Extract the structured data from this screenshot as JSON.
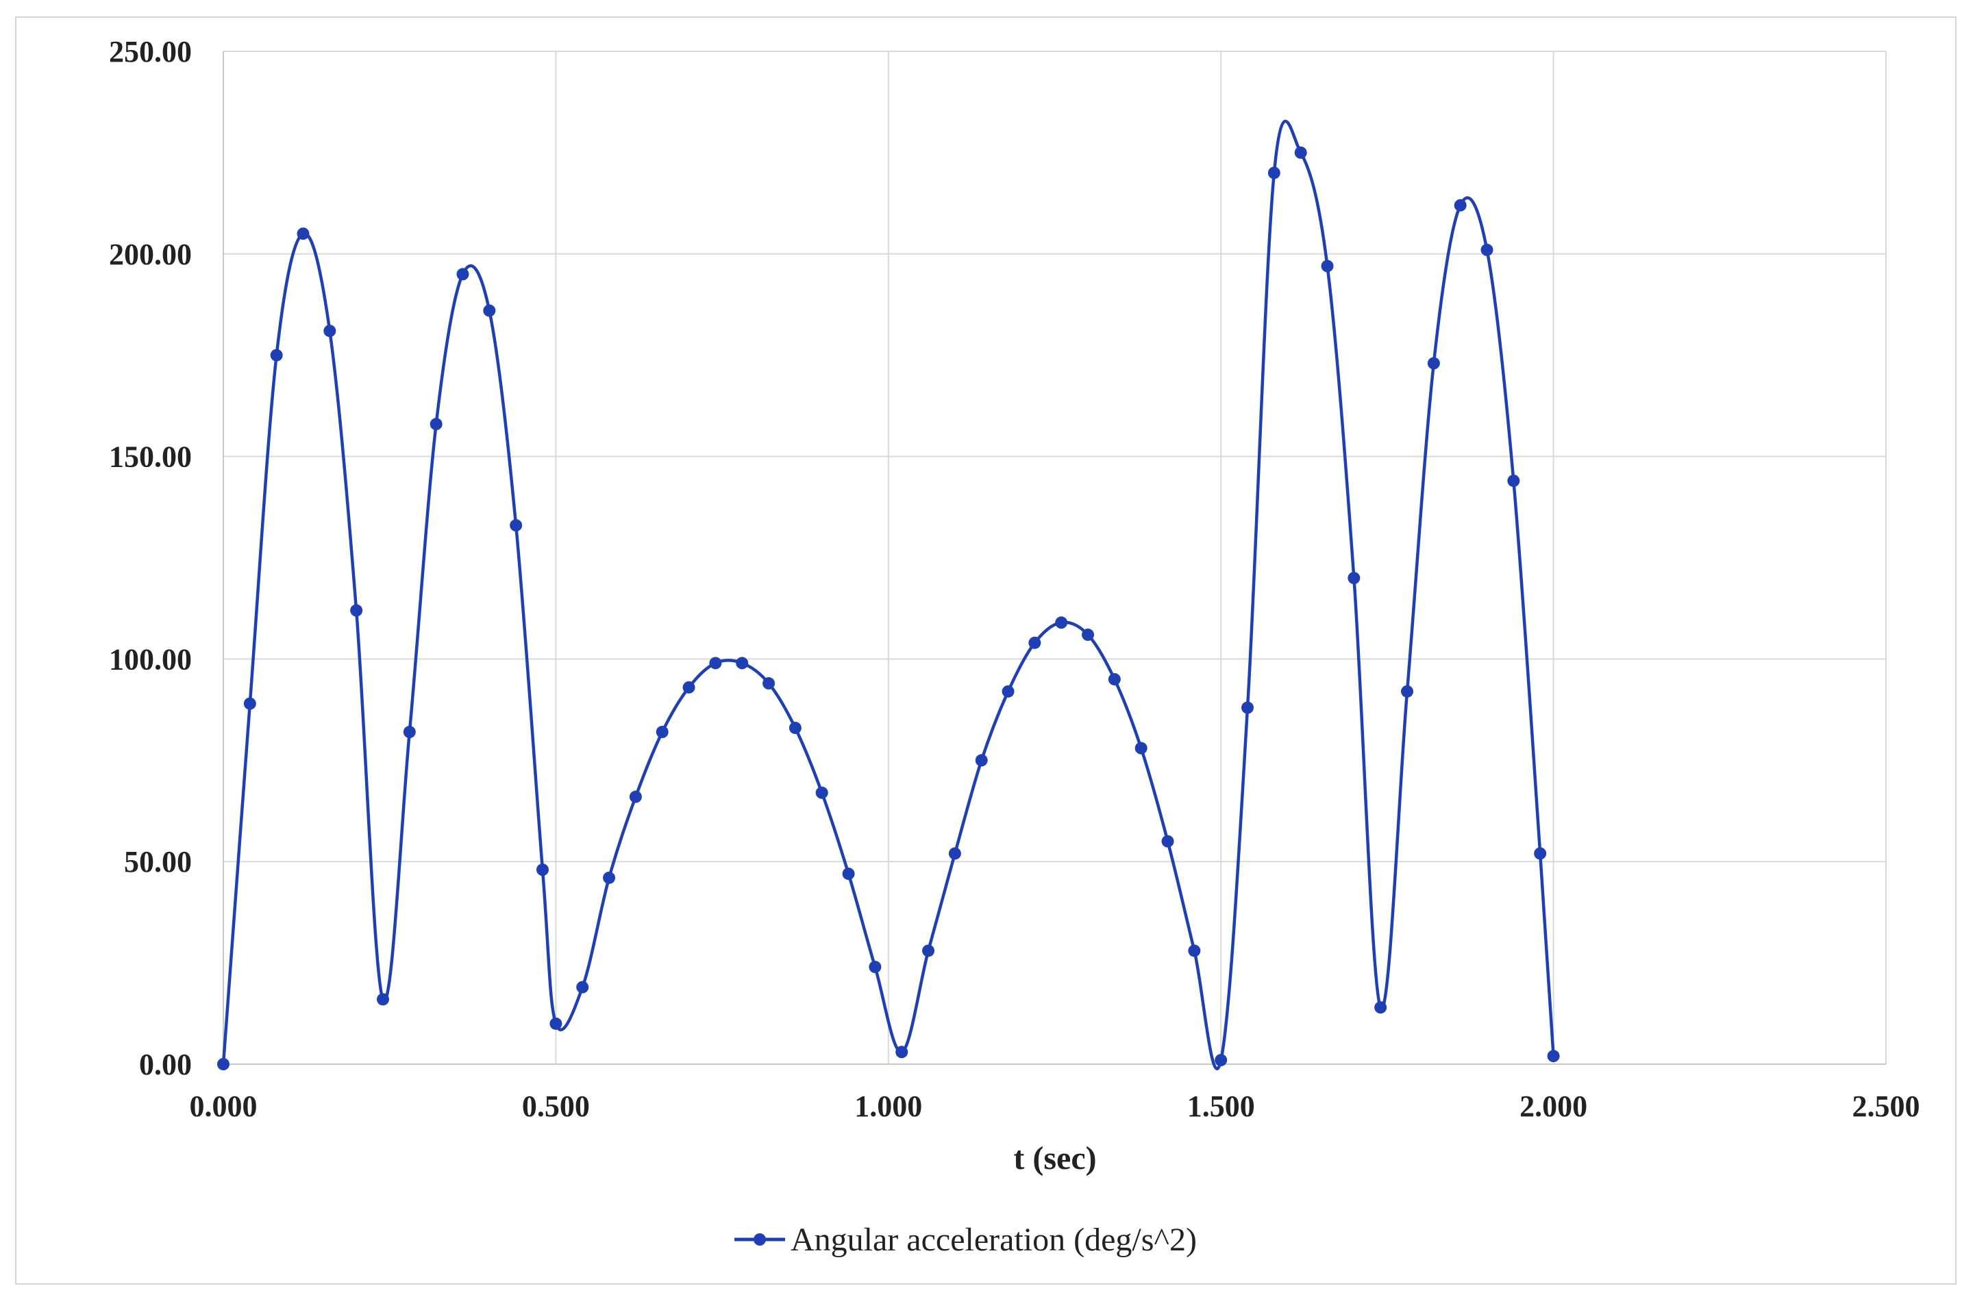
{
  "chart_data": {
    "type": "line",
    "title": "",
    "xlabel": "t (sec)",
    "ylabel": "",
    "xlim": [
      0,
      2.5
    ],
    "ylim": [
      0,
      250
    ],
    "x_ticks": [
      "0.000",
      "0.500",
      "1.000",
      "1.500",
      "2.000",
      "2.500"
    ],
    "y_ticks": [
      "0.00",
      "50.00",
      "100.00",
      "150.00",
      "200.00",
      "250.00"
    ],
    "grid": true,
    "legend_position": "bottom",
    "series": [
      {
        "name": "Angular acceleration (deg/s^2)",
        "color": "#1f3fb4",
        "marker": "circle",
        "smooth": true,
        "x": [
          0,
          0.04,
          0.08,
          0.12,
          0.16,
          0.2,
          0.24,
          0.28,
          0.32,
          0.36,
          0.4,
          0.44,
          0.48,
          0.5,
          0.54,
          0.58,
          0.62,
          0.66,
          0.7,
          0.74,
          0.78,
          0.82,
          0.86,
          0.9,
          0.94,
          0.98,
          1.02,
          1.06,
          1.1,
          1.14,
          1.18,
          1.22,
          1.26,
          1.3,
          1.34,
          1.38,
          1.42,
          1.46,
          1.5,
          1.54,
          1.58,
          1.62,
          1.66,
          1.7,
          1.74,
          1.78,
          1.82,
          1.86,
          1.9,
          1.94,
          1.98,
          2.0
        ],
        "y": [
          0,
          89,
          175,
          205,
          181,
          112,
          16,
          82,
          158,
          195,
          186,
          133,
          48,
          10,
          19,
          46,
          66,
          82,
          93,
          99,
          99,
          94,
          83,
          67,
          47,
          24,
          3,
          28,
          52,
          75,
          92,
          104,
          109,
          106,
          95,
          78,
          55,
          28,
          1,
          88,
          220,
          225,
          197,
          120,
          14,
          92,
          173,
          212,
          201,
          144,
          52,
          2
        ]
      }
    ]
  }
}
